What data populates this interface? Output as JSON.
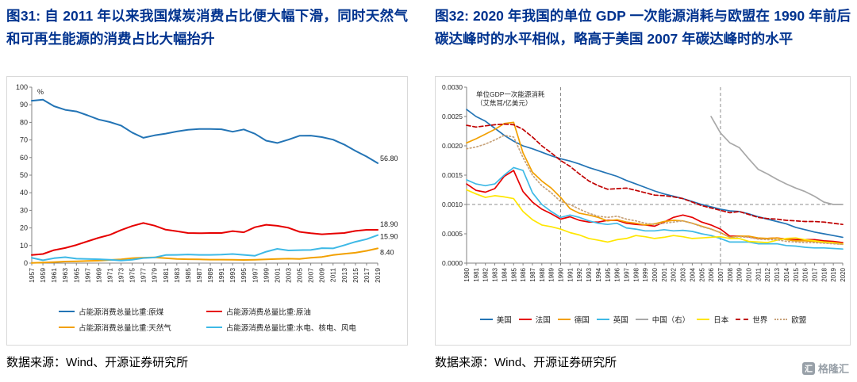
{
  "page": {
    "background": "#ffffff",
    "title_color": "#00338F",
    "axis_color": "#808080",
    "border_color": "#d9d9d9"
  },
  "watermark": {
    "brand": "格隆汇",
    "icon_text": "汇"
  },
  "chart_data": [
    {
      "type": "line",
      "title": "图31: 自 2011 年以来我国煤炭消费占比便大幅下滑，同时天然气和可再生能源的消费占比大幅抬升",
      "source": "数据来源：Wind、开源证券研究所",
      "unit": "%",
      "xlabel": "",
      "ylabel": "%",
      "ylim": [
        0,
        100
      ],
      "grid": false,
      "legend_position": "bottom",
      "y_ticks": [
        "100",
        "90",
        "80",
        "70",
        "60",
        "50",
        "40",
        "30",
        "20",
        "10",
        "0"
      ],
      "categories": [
        "1957",
        "1959",
        "1961",
        "1963",
        "1965",
        "1967",
        "1969",
        "1971",
        "1973",
        "1975",
        "1977",
        "1979",
        "1981",
        "1983",
        "1985",
        "1987",
        "1989",
        "1991",
        "1993",
        "1995",
        "1997",
        "1999",
        "2001",
        "2003",
        "2005",
        "2007",
        "2009",
        "2011",
        "2013",
        "2015",
        "2017",
        "2019"
      ],
      "series": [
        {
          "name": "占能源消费总量比重:原煤",
          "color": "#2374B5",
          "line_style": "solid",
          "end_label": "56.80",
          "end_dy": -3,
          "values": [
            92.3,
            92.9,
            89.2,
            87.1,
            86.2,
            84.0,
            81.6,
            80.2,
            78.2,
            74.2,
            71.2,
            72.6,
            73.6,
            74.8,
            75.8,
            76.2,
            76.2,
            76.1,
            74.7,
            76.0,
            73.5,
            69.6,
            68.3,
            70.2,
            72.4,
            72.5,
            71.6,
            70.2,
            67.4,
            63.8,
            60.6,
            56.8
          ]
        },
        {
          "name": "占能源消费总量比重:原油",
          "color": "#E60000",
          "line_style": "solid",
          "end_label": "18.90",
          "end_dy": -4,
          "values": [
            4.6,
            5.2,
            7.4,
            8.6,
            10.3,
            12.4,
            14.4,
            16.1,
            18.8,
            21.1,
            22.8,
            21.3,
            19.0,
            18.1,
            17.1,
            17.0,
            17.1,
            17.1,
            18.2,
            17.5,
            20.4,
            21.8,
            21.2,
            20.1,
            17.8,
            17.0,
            16.4,
            16.8,
            17.1,
            18.3,
            18.9,
            18.9
          ]
        },
        {
          "name": "占能源消费总量比重:天然气",
          "color": "#F2A000",
          "line_style": "solid",
          "end_label": "8.40",
          "end_dy": 8,
          "values": [
            0.1,
            0.3,
            0.6,
            0.9,
            1.0,
            1.2,
            1.4,
            1.8,
            2.1,
            2.8,
            3.1,
            3.3,
            2.8,
            2.4,
            2.2,
            2.1,
            2.0,
            2.0,
            1.9,
            1.8,
            1.9,
            2.1,
            2.4,
            2.5,
            2.4,
            3.0,
            3.5,
            4.6,
            5.3,
            5.9,
            7.0,
            8.4
          ]
        },
        {
          "name": "占能源消费总量比重:水电、核电、风电",
          "color": "#3EB9E6",
          "line_style": "solid",
          "end_label": "15.90",
          "end_dy": 5,
          "values": [
            3.0,
            1.6,
            2.8,
            3.4,
            2.5,
            2.4,
            2.2,
            1.9,
            1.5,
            1.9,
            2.9,
            3.2,
            4.6,
            4.7,
            4.9,
            4.7,
            4.7,
            4.8,
            5.2,
            4.7,
            4.2,
            6.5,
            8.1,
            7.2,
            7.4,
            7.5,
            8.5,
            8.4,
            10.2,
            12.1,
            13.6,
            15.9
          ]
        }
      ]
    },
    {
      "type": "line",
      "title": "图32: 2020 年我国的单位 GDP 一次能源消耗与欧盟在 1990 年前后碳达峰时的水平相似，略高于美国 2007 年碳达峰时的水平",
      "source": "数据来源：Wind、开源证券研究所",
      "inner_label": [
        "单位GDP一次能源消耗",
        "（艾焦耳/亿美元）"
      ],
      "xlabel": "",
      "ylabel": "单位GDP一次能源消耗（艾焦耳/亿美元）",
      "ylim": [
        0,
        0.003
      ],
      "grid": false,
      "legend_position": "bottom",
      "ref_vlines": [
        "1990",
        "2007"
      ],
      "ref_hlines": [
        0.001
      ],
      "y_ticks": [
        "0.0030",
        "0.0025",
        "0.0020",
        "0.0015",
        "0.0010",
        "0.0005",
        "0.0000"
      ],
      "categories": [
        "1980",
        "1981",
        "1982",
        "1983",
        "1984",
        "1985",
        "1986",
        "1987",
        "1988",
        "1989",
        "1990",
        "1991",
        "1992",
        "1993",
        "1994",
        "1995",
        "1996",
        "1997",
        "1998",
        "1999",
        "2000",
        "2001",
        "2002",
        "2003",
        "2004",
        "2005",
        "2006",
        "2007",
        "2008",
        "2009",
        "2010",
        "2011",
        "2012",
        "2013",
        "2014",
        "2015",
        "2016",
        "2017",
        "2018",
        "2019",
        "2020"
      ],
      "series": [
        {
          "name": "美国",
          "color": "#2374B5",
          "line_style": "solid",
          "values": [
            0.00262,
            0.0025,
            0.00242,
            0.0023,
            0.00218,
            0.00208,
            0.002,
            0.00195,
            0.00189,
            0.00183,
            0.00178,
            0.00174,
            0.00169,
            0.00163,
            0.00158,
            0.00153,
            0.00148,
            0.00141,
            0.00135,
            0.00129,
            0.00123,
            0.00118,
            0.00114,
            0.0011,
            0.00105,
            0.001,
            0.00096,
            0.00092,
            0.00089,
            0.00088,
            0.00084,
            0.00079,
            0.00075,
            0.00071,
            0.00067,
            0.00061,
            0.00057,
            0.00053,
            0.0005,
            0.00047,
            0.00044
          ]
        },
        {
          "name": "法国",
          "color": "#E60000",
          "line_style": "solid",
          "values": [
            0.00135,
            0.00124,
            0.00121,
            0.00127,
            0.00148,
            0.00158,
            0.00122,
            0.00104,
            0.00092,
            0.00084,
            0.00075,
            0.00079,
            0.00073,
            0.0007,
            0.0007,
            0.00073,
            0.00073,
            0.00068,
            0.00066,
            0.00065,
            0.00063,
            0.0007,
            0.00078,
            0.00082,
            0.00078,
            0.0007,
            0.00065,
            0.00058,
            0.00046,
            0.00046,
            0.00045,
            0.00042,
            0.00042,
            0.00043,
            0.00041,
            0.0004,
            0.0004,
            0.0004,
            0.00038,
            0.00037,
            0.00035
          ]
        },
        {
          "name": "德国",
          "color": "#F2A000",
          "line_style": "solid",
          "values": [
            0.00205,
            0.00212,
            0.0022,
            0.00228,
            0.00238,
            0.0024,
            0.00188,
            0.00155,
            0.0014,
            0.00128,
            0.00112,
            0.00093,
            0.00085,
            0.00082,
            0.00078,
            0.00072,
            0.00074,
            0.0007,
            0.00068,
            0.00065,
            0.00067,
            0.00071,
            0.00073,
            0.00072,
            0.00068,
            0.00063,
            0.00058,
            0.00052,
            0.00044,
            0.00046,
            0.00046,
            0.00043,
            0.00042,
            0.00043,
            0.0004,
            0.00038,
            0.00038,
            0.00037,
            0.00035,
            0.00034,
            0.00032
          ]
        },
        {
          "name": "英国",
          "color": "#3EB9E6",
          "line_style": "solid",
          "values": [
            0.00142,
            0.00135,
            0.00132,
            0.00135,
            0.0015,
            0.00163,
            0.00158,
            0.0012,
            0.001,
            0.00088,
            0.00078,
            0.00082,
            0.00078,
            0.00072,
            0.00068,
            0.00066,
            0.00068,
            0.0006,
            0.00058,
            0.00055,
            0.00055,
            0.00057,
            0.00055,
            0.00056,
            0.00054,
            0.0005,
            0.00047,
            0.00042,
            0.00036,
            0.00036,
            0.00036,
            0.00033,
            0.00033,
            0.00033,
            0.0003,
            0.00029,
            0.00027,
            0.00026,
            0.00026,
            0.00025,
            0.00024
          ]
        },
        {
          "name": "中国（右）",
          "color": "#A8A8A8",
          "line_style": "solid",
          "values": [
            null,
            null,
            null,
            null,
            null,
            null,
            null,
            null,
            null,
            null,
            null,
            null,
            null,
            null,
            null,
            null,
            null,
            null,
            null,
            null,
            null,
            null,
            null,
            null,
            null,
            null,
            0.0025,
            0.00222,
            0.00205,
            0.00197,
            0.00178,
            0.0016,
            0.00152,
            0.00143,
            0.00135,
            0.00128,
            0.00122,
            0.00114,
            0.00104,
            0.001,
            0.001
          ]
        },
        {
          "name": "日本",
          "color": "#FFE600",
          "line_style": "solid",
          "values": [
            0.00125,
            0.00118,
            0.00112,
            0.00115,
            0.00113,
            0.0011,
            0.00088,
            0.00074,
            0.00065,
            0.00062,
            0.00058,
            0.00052,
            0.00048,
            0.00042,
            0.00039,
            0.00036,
            0.0004,
            0.00042,
            0.00047,
            0.00045,
            0.00042,
            0.00044,
            0.00047,
            0.00045,
            0.00042,
            0.00043,
            0.00044,
            0.00045,
            0.00042,
            0.00042,
            0.00037,
            0.00036,
            0.00035,
            0.00039,
            0.00042,
            0.00043,
            0.0004,
            0.00038,
            0.00036,
            0.00035,
            0.00033
          ]
        },
        {
          "name": "世界",
          "color": "#C00000",
          "line_style": "dashed",
          "values": [
            0.00235,
            0.00232,
            0.00234,
            0.00236,
            0.00237,
            0.00236,
            0.00228,
            0.00215,
            0.002,
            0.00188,
            0.00175,
            0.00165,
            0.00152,
            0.0014,
            0.00132,
            0.00126,
            0.00127,
            0.00128,
            0.00124,
            0.0012,
            0.00116,
            0.00115,
            0.00113,
            0.0011,
            0.00104,
            0.00098,
            0.00094,
            0.0009,
            0.00086,
            0.00088,
            0.00083,
            0.00078,
            0.00076,
            0.00075,
            0.00073,
            0.00072,
            0.00071,
            0.00071,
            0.0007,
            0.00068,
            0.00066
          ]
        },
        {
          "name": "欧盟",
          "color": "#C7A27A",
          "line_style": "dotted",
          "values": [
            0.00195,
            0.00198,
            0.00203,
            0.0021,
            0.00218,
            0.00215,
            0.0018,
            0.0015,
            0.00132,
            0.0012,
            0.00105,
            0.001,
            0.00092,
            0.00085,
            0.0008,
            0.00078,
            0.0008,
            0.00075,
            0.00072,
            0.00068,
            0.00066,
            0.00068,
            0.0007,
            0.00072,
            0.00068,
            0.00062,
            0.00058,
            0.00052,
            0.00044,
            0.00045,
            0.00044,
            0.00041,
            0.0004,
            0.0004,
            0.00037,
            0.00036,
            0.00035,
            0.00035,
            0.00034,
            0.00033,
            0.00032
          ]
        }
      ]
    }
  ]
}
